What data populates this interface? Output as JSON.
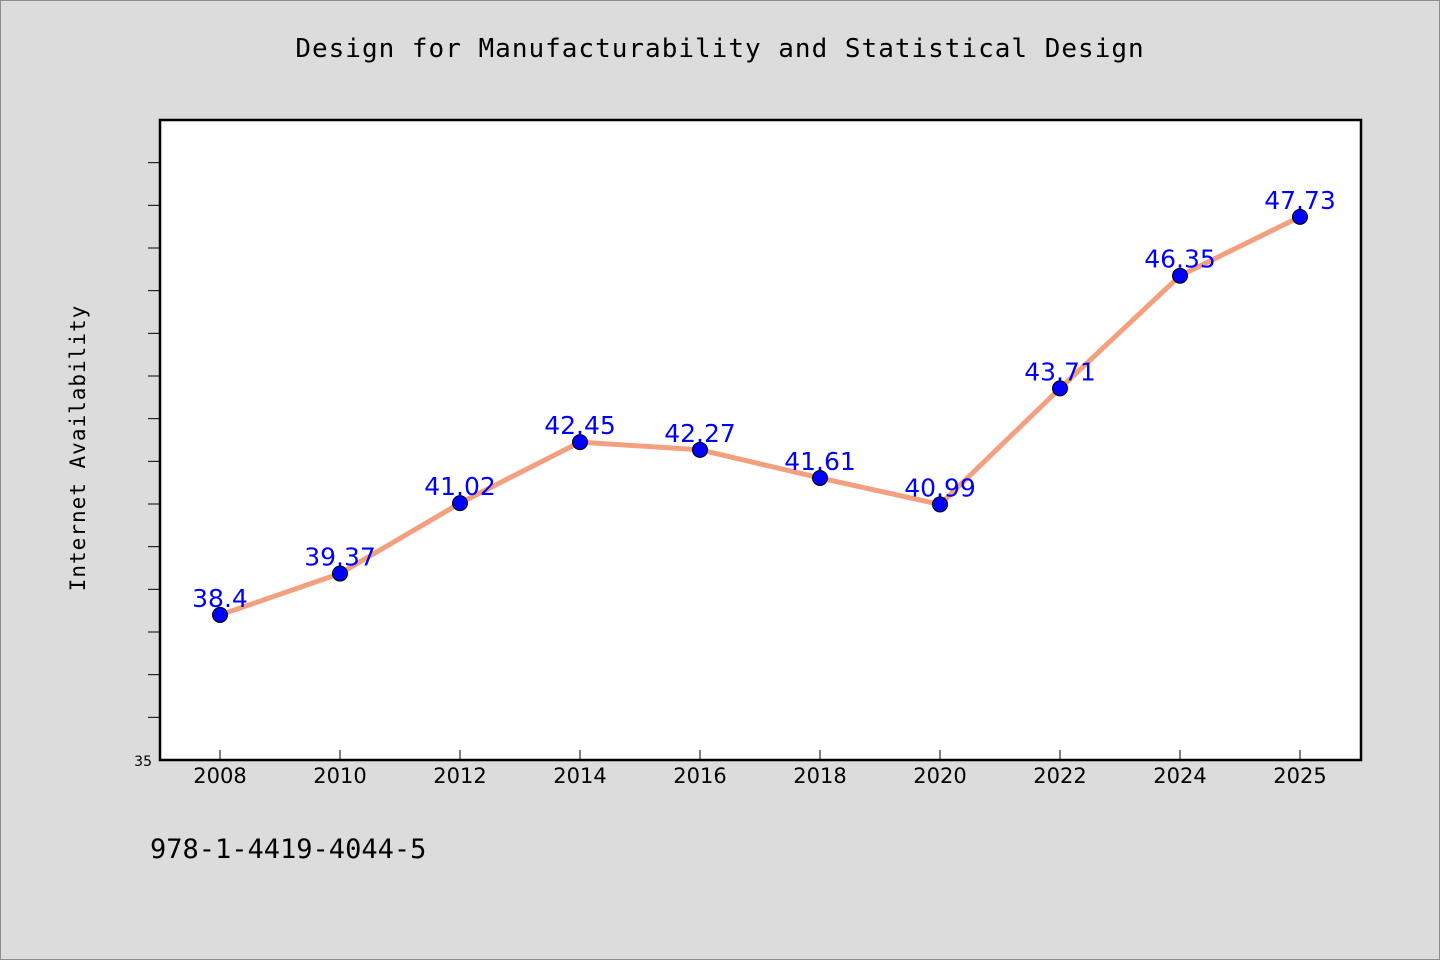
{
  "chart_data": {
    "type": "line",
    "title": "Design for Manufacturability and Statistical Design",
    "xlabel": "",
    "ylabel": "Internet Availability",
    "categories": [
      "2008",
      "2010",
      "2012",
      "2014",
      "2016",
      "2018",
      "2020",
      "2022",
      "2024",
      "2025"
    ],
    "series": [
      {
        "values": [
          38.4,
          39.37,
          41.02,
          42.45,
          42.27,
          41.61,
          40.99,
          43.71,
          46.35,
          47.73
        ],
        "data_labels": [
          "38.4",
          "39.37",
          "41.02",
          "42.45",
          "42.27",
          "41.61",
          "40.99",
          "43.71",
          "46.35",
          "47.73"
        ],
        "line_color": "#f4a07e",
        "marker_color": "#0000ff",
        "label_color": "#0000ff"
      }
    ],
    "ylim": [
      35,
      50
    ],
    "y_tick_labels": [
      {
        "value": 35,
        "label": "35"
      }
    ],
    "y_minor_tick_step": 1,
    "grid": false,
    "legend": "none",
    "background_color": "#dcdcdc",
    "plot_background_color": "#ffffff"
  },
  "footer": {
    "isbn": "978-1-4419-4044-5"
  }
}
